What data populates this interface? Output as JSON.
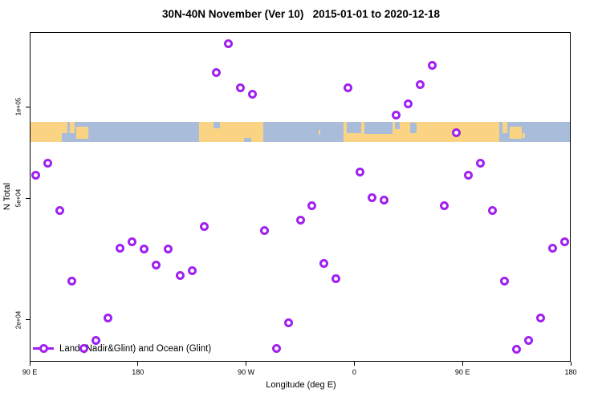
{
  "title": "30N-40N November (Ver 10)   2015-01-01 to 2020-12-18",
  "legend": {
    "label": "Land (Nadir&Glint) and Ocean (Glint)"
  },
  "colors": {
    "point": "#a020f0",
    "land": "#fbd483",
    "ocean": "#a9bddb",
    "axis": "#000000"
  },
  "chart_data": {
    "type": "scatter",
    "title": "30N-40N November (Ver 10)   2015-01-01 to 2020-12-18",
    "xlabel": "Longitude (deg E)",
    "ylabel": "N Total",
    "xlim": [
      90,
      540
    ],
    "ylim": [
      14560,
      175700
    ],
    "yscale": "log",
    "grid": false,
    "x_ticks": [
      {
        "value": 90,
        "label": "90 E"
      },
      {
        "value": 180,
        "label": "180"
      },
      {
        "value": 270,
        "label": "90 W"
      },
      {
        "value": 360,
        "label": "0"
      },
      {
        "value": 450,
        "label": "90 E"
      },
      {
        "value": 540,
        "label": "180"
      }
    ],
    "y_ticks": [
      {
        "value": 100000,
        "label": "1e+05"
      },
      {
        "value": 50000,
        "label": "5e+04"
      },
      {
        "value": 20000,
        "label": "2e+04"
      }
    ],
    "series": [
      {
        "name": "Land (Nadir&Glint) and Ocean (Glint)",
        "marker": "open-circle",
        "x": [
          95,
          105,
          115,
          125,
          135,
          145,
          155,
          165,
          175,
          185,
          195,
          205,
          215,
          225,
          235,
          245,
          255,
          265,
          275,
          285,
          295,
          305,
          315,
          325,
          335,
          345,
          355,
          365,
          375,
          385,
          395,
          405,
          415,
          425,
          435,
          445,
          455,
          465,
          475,
          485,
          495,
          505,
          515,
          525,
          535
        ],
        "y": [
          59400,
          65400,
          45500,
          26800,
          16100,
          17100,
          20200,
          34400,
          36100,
          34200,
          30200,
          34200,
          28000,
          29000,
          40300,
          129000,
          161000,
          115000,
          110000,
          39100,
          16100,
          19500,
          42300,
          47400,
          30500,
          27300,
          115000,
          61200,
          50400,
          49500,
          94000,
          102000,
          118000,
          137000,
          47200,
          82000,
          59400,
          65400,
          45500,
          26700,
          16000,
          17100,
          20300,
          34300,
          36100
        ]
      }
    ],
    "map_band": {
      "description": "30N-40N latitude strip of world map drawn across plot",
      "y_range": [
        76600,
        89000
      ],
      "segments": [
        {
          "type": "land",
          "x": [
            90,
            121.5
          ],
          "y": [
            0,
            1
          ]
        },
        {
          "type": "ocean",
          "x": [
            117,
            121.5
          ],
          "y": [
            0.55,
            1
          ]
        },
        {
          "type": "land",
          "x": [
            123.5,
            127.5
          ],
          "y": [
            0,
            0.55
          ]
        },
        {
          "type": "land",
          "x": [
            129,
            139
          ],
          "y": [
            0.25,
            0.85
          ]
        },
        {
          "type": "land",
          "x": [
            231,
            284
          ],
          "y": [
            0,
            1
          ]
        },
        {
          "type": "ocean",
          "x": [
            243,
            248
          ],
          "y": [
            0,
            0.3
          ]
        },
        {
          "type": "ocean",
          "x": [
            268,
            274
          ],
          "y": [
            0.8,
            1
          ]
        },
        {
          "type": "land",
          "x": [
            330.5,
            332
          ],
          "y": [
            0.4,
            0.65
          ]
        },
        {
          "type": "land",
          "x": [
            351,
            480.5
          ],
          "y": [
            0,
            1
          ]
        },
        {
          "type": "ocean",
          "x": [
            354,
            366
          ],
          "y": [
            0,
            0.55
          ]
        },
        {
          "type": "ocean",
          "x": [
            368.5,
            391.5
          ],
          "y": [
            0,
            0.6
          ]
        },
        {
          "type": "ocean",
          "x": [
            393.5,
            398
          ],
          "y": [
            0,
            0.35
          ]
        },
        {
          "type": "ocean",
          "x": [
            406.5,
            412
          ],
          "y": [
            0.05,
            0.55
          ]
        },
        {
          "type": "land",
          "x": [
            483.5,
            487.5
          ],
          "y": [
            0,
            0.55
          ]
        },
        {
          "type": "land",
          "x": [
            489,
            499
          ],
          "y": [
            0.25,
            0.85
          ]
        },
        {
          "type": "land",
          "x": [
            500,
            502
          ],
          "y": [
            0.55,
            0.8
          ]
        }
      ]
    }
  }
}
